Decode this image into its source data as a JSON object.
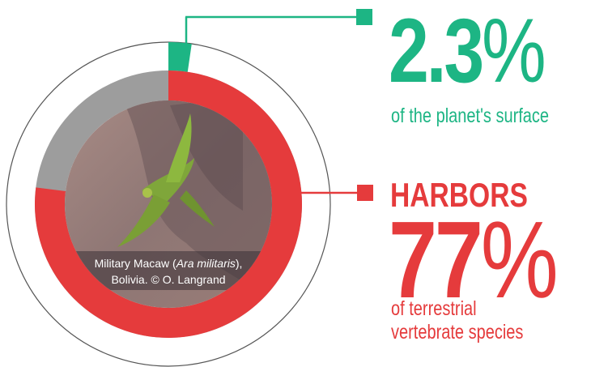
{
  "chart_data": {
    "type": "donut",
    "segments": [
      {
        "value": 2.3,
        "unit": "%",
        "label": "of the planet's surface",
        "color": "#1db584"
      },
      {
        "prefix": "HARBORS",
        "value": 77,
        "unit": "%",
        "label": "of terrestrial vertebrate species",
        "color": "#e53b3c"
      }
    ],
    "caption": [
      "Military Macaw (",
      "Ara militaris",
      "),",
      "Bolivia. © O. Langrand"
    ]
  }
}
